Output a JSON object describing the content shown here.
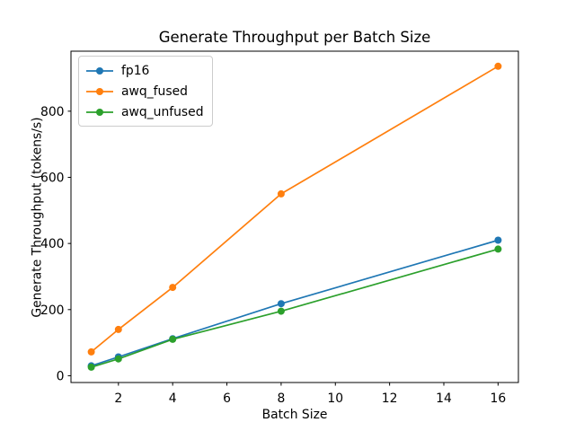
{
  "chart_data": {
    "type": "line",
    "title": "Generate Throughput per Batch Size",
    "xlabel": "Batch Size",
    "ylabel": "Generate Throughput (tokens/s)",
    "x": [
      1,
      2,
      4,
      8,
      16
    ],
    "series": [
      {
        "name": "fp16",
        "color": "#1f77b4",
        "values": [
          30,
          57,
          112,
          218,
          410
        ]
      },
      {
        "name": "awq_fused",
        "color": "#ff7f0e",
        "values": [
          72,
          140,
          267,
          550,
          936
        ]
      },
      {
        "name": "awq_unfused",
        "color": "#2ca02c",
        "values": [
          26,
          51,
          110,
          195,
          383
        ]
      }
    ],
    "xticks": [
      2,
      4,
      6,
      8,
      10,
      12,
      14,
      16
    ],
    "yticks": [
      0,
      200,
      400,
      600,
      800
    ],
    "xlim": [
      0.25,
      16.75
    ],
    "ylim": [
      -20.5,
      981.5
    ],
    "grid": false,
    "legend_position": "upper-left",
    "marker": "circle",
    "axis_color": "#000000",
    "background_color": "#ffffff"
  }
}
